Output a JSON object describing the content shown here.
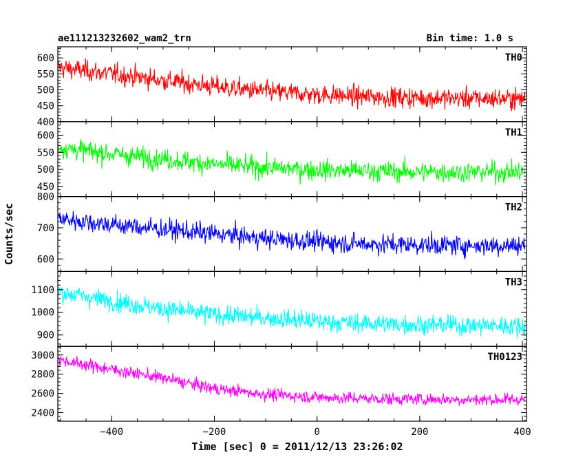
{
  "header": {
    "obsid": "ae111213232602_wam2_trn",
    "bin_time": "Bin time: 1.0 s"
  },
  "chart_data": {
    "type": "line",
    "xlabel": "Time [sec] 0 = 2011/12/13 23:26:02",
    "ylabel": "Counts/sec",
    "xlim": [
      -505,
      408
    ],
    "xticks": [
      -400,
      -200,
      0,
      200,
      400
    ],
    "xtick_labels": [
      "−400",
      "−200",
      "0",
      "200",
      "400"
    ],
    "panels": [
      {
        "name": "TH0",
        "color": "#ff0000",
        "ylim": [
          400,
          635
        ],
        "yticks": [
          400,
          450,
          500,
          550,
          600
        ],
        "trend": {
          "x": [
            -505,
            -400,
            -300,
            -200,
            -100,
            0,
            100,
            200,
            300,
            405
          ],
          "y": [
            570,
            550,
            530,
            510,
            495,
            485,
            478,
            475,
            473,
            472
          ]
        },
        "noise": 30
      },
      {
        "name": "TH1",
        "color": "#00ff00",
        "ylim": [
          420,
          640
        ],
        "yticks": [
          450,
          500,
          550,
          600
        ],
        "trend": {
          "x": [
            -505,
            -400,
            -300,
            -200,
            -100,
            0,
            100,
            200,
            300,
            405
          ],
          "y": [
            565,
            545,
            530,
            515,
            505,
            498,
            495,
            492,
            492,
            492
          ]
        },
        "noise": 28
      },
      {
        "name": "TH2",
        "color": "#0000ff",
        "ylim": [
          560,
          800
        ],
        "yticks": [
          600,
          700,
          800
        ],
        "trend": {
          "x": [
            -505,
            -400,
            -300,
            -200,
            -100,
            0,
            100,
            200,
            300,
            405
          ],
          "y": [
            730,
            710,
            695,
            680,
            665,
            655,
            648,
            645,
            643,
            643
          ]
        },
        "noise": 30
      },
      {
        "name": "TH3",
        "color": "#00ffff",
        "ylim": [
          850,
          1180
        ],
        "yticks": [
          900,
          1000,
          1100
        ],
        "trend": {
          "x": [
            -505,
            -400,
            -300,
            -200,
            -100,
            0,
            100,
            200,
            300,
            405
          ],
          "y": [
            1090,
            1050,
            1015,
            990,
            975,
            960,
            950,
            945,
            942,
            940
          ]
        },
        "noise": 40
      },
      {
        "name": "TH0123",
        "color": "#ff00ff",
        "ylim": [
          2310,
          3090
        ],
        "yticks": [
          2400,
          2600,
          2800,
          3000
        ],
        "trend": {
          "x": [
            -505,
            -400,
            -300,
            -200,
            -100,
            0,
            100,
            200,
            300,
            405
          ],
          "y": [
            2950,
            2850,
            2760,
            2650,
            2590,
            2560,
            2545,
            2540,
            2535,
            2535
          ]
        },
        "noise": 60
      }
    ]
  }
}
